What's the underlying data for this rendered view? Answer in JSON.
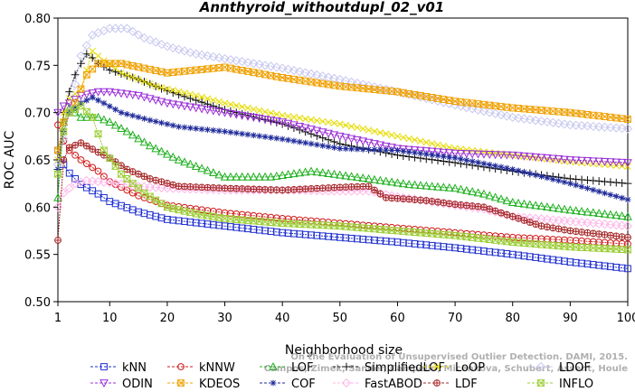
{
  "chart_data": {
    "type": "line",
    "title": "Annthyroid_withoutdupl_02_v01",
    "xlabel": "Neighborhood size",
    "ylabel": "ROC AUC",
    "xlim": [
      1,
      100
    ],
    "ylim": [
      0.5,
      0.8
    ],
    "xticks": [
      1,
      10,
      20,
      30,
      40,
      50,
      60,
      70,
      80,
      90,
      100
    ],
    "yticks": [
      "0.50",
      "0.55",
      "0.60",
      "0.65",
      "0.70",
      "0.75",
      "0.80"
    ],
    "credit": [
      "Campos, Zimek, Sander, Campello, Micenkova, Schubert, Assent, Houle",
      "On the Evaluation of Unsupervised Outlier Detection. DAMI, 2015."
    ],
    "legend_position": "bottom",
    "series": [
      {
        "name": "kNN",
        "color": "#1f2fd0",
        "marker": "square",
        "knots": [
          [
            1,
            0.66
          ],
          [
            2,
            0.645
          ],
          [
            3,
            0.636
          ],
          [
            5,
            0.624
          ],
          [
            8,
            0.614
          ],
          [
            10,
            0.606
          ],
          [
            15,
            0.595
          ],
          [
            20,
            0.587
          ],
          [
            30,
            0.58
          ],
          [
            40,
            0.573
          ],
          [
            50,
            0.568
          ],
          [
            60,
            0.563
          ],
          [
            70,
            0.557
          ],
          [
            80,
            0.55
          ],
          [
            90,
            0.542
          ],
          [
            100,
            0.535
          ]
        ]
      },
      {
        "name": "kNNW",
        "color": "#d11a1a",
        "marker": "circle",
        "knots": [
          [
            1,
            0.687
          ],
          [
            2,
            0.67
          ],
          [
            3,
            0.66
          ],
          [
            5,
            0.65
          ],
          [
            8,
            0.638
          ],
          [
            10,
            0.627
          ],
          [
            15,
            0.612
          ],
          [
            20,
            0.602
          ],
          [
            30,
            0.594
          ],
          [
            40,
            0.588
          ],
          [
            50,
            0.583
          ],
          [
            60,
            0.578
          ],
          [
            70,
            0.573
          ],
          [
            80,
            0.568
          ],
          [
            90,
            0.565
          ],
          [
            100,
            0.561
          ]
        ]
      },
      {
        "name": "LOF",
        "color": "#20b020",
        "marker": "triangle",
        "knots": [
          [
            1,
            0.61
          ],
          [
            2,
            0.69
          ],
          [
            3,
            0.705
          ],
          [
            5,
            0.695
          ],
          [
            8,
            0.695
          ],
          [
            10,
            0.69
          ],
          [
            13,
            0.68
          ],
          [
            17,
            0.665
          ],
          [
            22,
            0.65
          ],
          [
            30,
            0.632
          ],
          [
            38,
            0.632
          ],
          [
            45,
            0.638
          ],
          [
            55,
            0.63
          ],
          [
            62,
            0.624
          ],
          [
            70,
            0.62
          ],
          [
            75,
            0.614
          ],
          [
            80,
            0.605
          ],
          [
            90,
            0.597
          ],
          [
            100,
            0.59
          ]
        ]
      },
      {
        "name": "SimplifiedLOF",
        "color": "#111111",
        "marker": "plus",
        "knots": [
          [
            1,
            0.64
          ],
          [
            2,
            0.7
          ],
          [
            3,
            0.722
          ],
          [
            4,
            0.74
          ],
          [
            5,
            0.752
          ],
          [
            6,
            0.762
          ],
          [
            7,
            0.758
          ],
          [
            8,
            0.752
          ],
          [
            10,
            0.745
          ],
          [
            15,
            0.735
          ],
          [
            20,
            0.723
          ],
          [
            30,
            0.703
          ],
          [
            40,
            0.688
          ],
          [
            50,
            0.667
          ],
          [
            60,
            0.655
          ],
          [
            70,
            0.647
          ],
          [
            80,
            0.638
          ],
          [
            90,
            0.63
          ],
          [
            100,
            0.625
          ]
        ]
      },
      {
        "name": "LoOP",
        "color": "#e6dc00",
        "marker": "cross",
        "knots": [
          [
            1,
            0.65
          ],
          [
            2,
            0.7
          ],
          [
            3,
            0.715
          ],
          [
            5,
            0.725
          ],
          [
            7,
            0.765
          ],
          [
            9,
            0.755
          ],
          [
            12,
            0.742
          ],
          [
            18,
            0.728
          ],
          [
            25,
            0.718
          ],
          [
            30,
            0.71
          ],
          [
            40,
            0.697
          ],
          [
            50,
            0.688
          ],
          [
            60,
            0.675
          ],
          [
            70,
            0.662
          ],
          [
            80,
            0.655
          ],
          [
            90,
            0.648
          ],
          [
            100,
            0.643
          ]
        ]
      },
      {
        "name": "LDOF",
        "color": "#c8c8f0",
        "marker": "diamond",
        "knots": [
          [
            1,
            0.645
          ],
          [
            3,
            0.7
          ],
          [
            5,
            0.76
          ],
          [
            7,
            0.782
          ],
          [
            10,
            0.789
          ],
          [
            13,
            0.789
          ],
          [
            16,
            0.779
          ],
          [
            20,
            0.77
          ],
          [
            25,
            0.762
          ],
          [
            30,
            0.757
          ],
          [
            40,
            0.747
          ],
          [
            50,
            0.735
          ],
          [
            60,
            0.722
          ],
          [
            70,
            0.708
          ],
          [
            80,
            0.695
          ],
          [
            90,
            0.687
          ],
          [
            100,
            0.683
          ]
        ]
      },
      {
        "name": "ODIN",
        "color": "#9b30d8",
        "marker": "triangle-down",
        "knots": [
          [
            1,
            0.7
          ],
          [
            2,
            0.707
          ],
          [
            3,
            0.71
          ],
          [
            5,
            0.718
          ],
          [
            8,
            0.722
          ],
          [
            10,
            0.722
          ],
          [
            15,
            0.718
          ],
          [
            20,
            0.71
          ],
          [
            30,
            0.7
          ],
          [
            40,
            0.69
          ],
          [
            50,
            0.675
          ],
          [
            60,
            0.662
          ],
          [
            70,
            0.657
          ],
          [
            80,
            0.655
          ],
          [
            90,
            0.65
          ],
          [
            100,
            0.647
          ]
        ]
      },
      {
        "name": "KDEOS",
        "color": "#f0a000",
        "marker": "square-x",
        "knots": [
          [
            1,
            0.66
          ],
          [
            2,
            0.69
          ],
          [
            3,
            0.7
          ],
          [
            4,
            0.71
          ],
          [
            6,
            0.74
          ],
          [
            8,
            0.752
          ],
          [
            12,
            0.752
          ],
          [
            20,
            0.742
          ],
          [
            25,
            0.745
          ],
          [
            30,
            0.748
          ],
          [
            40,
            0.737
          ],
          [
            50,
            0.728
          ],
          [
            60,
            0.722
          ],
          [
            70,
            0.712
          ],
          [
            80,
            0.705
          ],
          [
            90,
            0.7
          ],
          [
            100,
            0.693
          ]
        ]
      },
      {
        "name": "COF",
        "color": "#1f2b9a",
        "marker": "star",
        "knots": [
          [
            1,
            0.64
          ],
          [
            2,
            0.68
          ],
          [
            3,
            0.7
          ],
          [
            5,
            0.71
          ],
          [
            7,
            0.716
          ],
          [
            9,
            0.71
          ],
          [
            12,
            0.7
          ],
          [
            17,
            0.692
          ],
          [
            22,
            0.685
          ],
          [
            30,
            0.68
          ],
          [
            40,
            0.672
          ],
          [
            50,
            0.662
          ],
          [
            60,
            0.66
          ],
          [
            70,
            0.652
          ],
          [
            80,
            0.64
          ],
          [
            90,
            0.625
          ],
          [
            100,
            0.608
          ]
        ]
      },
      {
        "name": "FastABOD",
        "color": "#ffb6e8",
        "marker": "diamond",
        "knots": [
          [
            1,
            0.6
          ],
          [
            2,
            0.615
          ],
          [
            4,
            0.625
          ],
          [
            6,
            0.628
          ],
          [
            10,
            0.626
          ],
          [
            15,
            0.622
          ],
          [
            20,
            0.62
          ],
          [
            30,
            0.618
          ],
          [
            40,
            0.618
          ],
          [
            50,
            0.617
          ],
          [
            55,
            0.617
          ],
          [
            60,
            0.611
          ],
          [
            70,
            0.602
          ],
          [
            75,
            0.598
          ],
          [
            80,
            0.59
          ],
          [
            90,
            0.585
          ],
          [
            100,
            0.58
          ]
        ]
      },
      {
        "name": "LDF",
        "color": "#a52828",
        "marker": "circle-plus",
        "knots": [
          [
            1,
            0.565
          ],
          [
            2,
            0.65
          ],
          [
            3,
            0.663
          ],
          [
            5,
            0.668
          ],
          [
            8,
            0.658
          ],
          [
            10,
            0.652
          ],
          [
            13,
            0.64
          ],
          [
            17,
            0.63
          ],
          [
            22,
            0.622
          ],
          [
            30,
            0.62
          ],
          [
            40,
            0.618
          ],
          [
            50,
            0.621
          ],
          [
            55,
            0.622
          ],
          [
            58,
            0.61
          ],
          [
            65,
            0.607
          ],
          [
            70,
            0.603
          ],
          [
            75,
            0.6
          ],
          [
            80,
            0.59
          ],
          [
            85,
            0.58
          ],
          [
            90,
            0.575
          ],
          [
            100,
            0.568
          ]
        ]
      },
      {
        "name": "INFLO",
        "color": "#9acd32",
        "marker": "hourglass",
        "knots": [
          [
            1,
            0.635
          ],
          [
            2,
            0.68
          ],
          [
            3,
            0.7
          ],
          [
            5,
            0.707
          ],
          [
            7,
            0.695
          ],
          [
            9,
            0.66
          ],
          [
            12,
            0.635
          ],
          [
            16,
            0.615
          ],
          [
            20,
            0.6
          ],
          [
            25,
            0.593
          ],
          [
            30,
            0.588
          ],
          [
            40,
            0.583
          ],
          [
            50,
            0.58
          ],
          [
            60,
            0.575
          ],
          [
            70,
            0.57
          ],
          [
            80,
            0.563
          ],
          [
            90,
            0.558
          ],
          [
            100,
            0.555
          ]
        ]
      }
    ]
  }
}
